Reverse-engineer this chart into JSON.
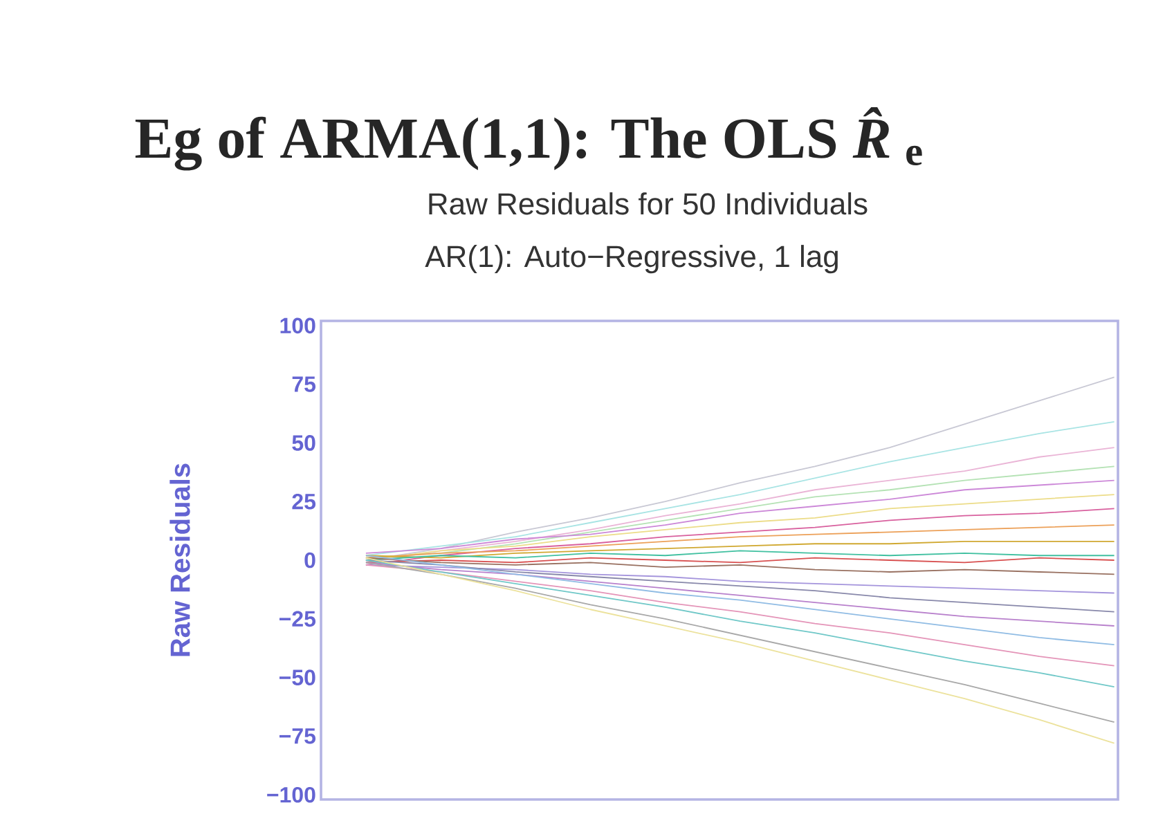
{
  "chart_data": {
    "type": "line",
    "title": "Eg of ARMA(1,1): The OLS *R̂*$_{e}$",
    "subtitle": "Raw Residuals for 50 Individuals",
    "annotations": [
      "AR(1): Auto−Regressive, 1 lag"
    ],
    "ylabel": "Raw Residuals",
    "categories": [
      null,
      null,
      null,
      null,
      null,
      null,
      null,
      null,
      null,
      null,
      null
    ],
    "ylim": [
      -102,
      102
    ],
    "yticks": [
      {
        "value": -100,
        "label": "−100"
      },
      {
        "value": -75,
        "label": "−75"
      },
      {
        "value": -50,
        "label": "−50"
      },
      {
        "value": -25,
        "label": "−25"
      },
      0,
      25,
      50,
      75,
      100
    ],
    "tick_labels": "y",
    "marker": "none",
    "line_style": "solid",
    "series": [
      {
        "color": "#c8c8d4",
        "values": [
          0,
          5,
          12,
          18,
          25,
          33,
          40,
          48,
          58,
          68,
          78
        ]
      },
      {
        "color": "#a8e4e4",
        "values": [
          2,
          6,
          10,
          16,
          22,
          28,
          35,
          42,
          48,
          54,
          59
        ]
      },
      {
        "color": "#eab4d6",
        "values": [
          -1,
          4,
          8,
          13,
          19,
          24,
          30,
          34,
          38,
          44,
          48
        ]
      },
      {
        "color": "#b4e2b4",
        "values": [
          1,
          3,
          7,
          12,
          17,
          22,
          27,
          30,
          34,
          37,
          40
        ]
      },
      {
        "color": "#cc88d8",
        "values": [
          3,
          5,
          9,
          11,
          15,
          20,
          23,
          26,
          30,
          32,
          34
        ]
      },
      {
        "color": "#ecdc88",
        "values": [
          0,
          4,
          6,
          10,
          13,
          16,
          18,
          22,
          24,
          26,
          28
        ]
      },
      {
        "color": "#d8609e",
        "values": [
          -2,
          2,
          5,
          7,
          10,
          12,
          14,
          17,
          19,
          20,
          22
        ]
      },
      {
        "color": "#eca058",
        "values": [
          1,
          3,
          4,
          6,
          8,
          10,
          11,
          12,
          13,
          14,
          15
        ]
      },
      {
        "color": "#d0a830",
        "values": [
          2,
          1,
          3,
          4,
          5,
          6,
          7,
          7,
          8,
          8,
          8
        ]
      },
      {
        "color": "#40c0a0",
        "values": [
          0,
          2,
          1,
          3,
          2,
          4,
          3,
          2,
          3,
          2,
          2
        ]
      },
      {
        "color": "#d85050",
        "values": [
          -1,
          0,
          -1,
          1,
          0,
          -1,
          1,
          0,
          -1,
          1,
          0
        ]
      },
      {
        "color": "#987060",
        "values": [
          1,
          -1,
          -2,
          -1,
          -3,
          -2,
          -4,
          -5,
          -4,
          -5,
          -6
        ]
      },
      {
        "color": "#a494dc",
        "values": [
          -2,
          -3,
          -4,
          -6,
          -7,
          -9,
          -10,
          -11,
          -12,
          -13,
          -14
        ]
      },
      {
        "color": "#8888aa",
        "values": [
          0,
          -2,
          -5,
          -7,
          -9,
          -11,
          -13,
          -16,
          -18,
          -20,
          -22
        ]
      },
      {
        "color": "#b880cc",
        "values": [
          -1,
          -4,
          -6,
          -9,
          -12,
          -15,
          -18,
          -21,
          -24,
          -26,
          -28
        ]
      },
      {
        "color": "#90bce4",
        "values": [
          2,
          -2,
          -6,
          -10,
          -14,
          -17,
          -21,
          -25,
          -29,
          -33,
          -36
        ]
      },
      {
        "color": "#e494b8",
        "values": [
          -2,
          -5,
          -9,
          -13,
          -18,
          -22,
          -27,
          -31,
          -36,
          -41,
          -45
        ]
      },
      {
        "color": "#70c8c8",
        "values": [
          0,
          -5,
          -10,
          -15,
          -20,
          -26,
          -31,
          -37,
          -43,
          -48,
          -54
        ]
      },
      {
        "color": "#a8a8a8",
        "values": [
          -1,
          -6,
          -12,
          -19,
          -25,
          -32,
          -39,
          -46,
          -53,
          -61,
          -69
        ]
      },
      {
        "color": "#ece29c",
        "values": [
          1,
          -6,
          -13,
          -21,
          -28,
          -35,
          -43,
          -51,
          -59,
          -68,
          -78
        ]
      }
    ]
  }
}
